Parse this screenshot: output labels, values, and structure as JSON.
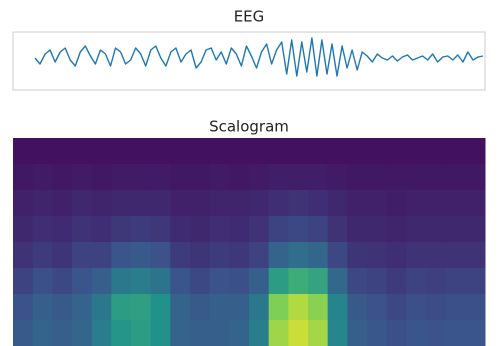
{
  "chart_data": [
    {
      "type": "line",
      "title": "EEG",
      "color": "#1f77b4",
      "ylim": [
        -1.2,
        1.2
      ],
      "values": [
        0.0,
        -0.3,
        0.2,
        0.4,
        -0.2,
        0.3,
        0.5,
        -0.1,
        -0.4,
        0.3,
        0.6,
        0.1,
        -0.3,
        0.4,
        0.2,
        -0.4,
        0.5,
        0.3,
        -0.3,
        -0.1,
        0.5,
        0.2,
        -0.4,
        0.4,
        0.6,
        0.0,
        -0.4,
        0.3,
        0.5,
        -0.2,
        0.2,
        0.4,
        -0.5,
        -0.2,
        0.4,
        0.5,
        -0.1,
        0.3,
        -0.3,
        0.5,
        0.2,
        -0.4,
        0.6,
        0.1,
        -0.5,
        0.3,
        0.7,
        -0.3,
        0.4,
        0.8,
        -0.8,
        0.9,
        -0.9,
        0.8,
        -0.7,
        1.0,
        -0.9,
        0.9,
        -0.8,
        0.7,
        -0.9,
        0.6,
        -0.5,
        0.4,
        -0.6,
        0.3,
        0.1,
        -0.2,
        0.2,
        0.0,
        -0.1,
        0.1,
        -0.15,
        0.05,
        0.15,
        -0.1,
        0.0,
        0.1,
        -0.1,
        0.2,
        -0.2,
        0.05,
        0.1,
        -0.1,
        0.15,
        -0.2,
        0.3,
        -0.1,
        0.05,
        0.1
      ]
    },
    {
      "type": "heatmap",
      "title": "Scalogram",
      "colormap": "viridis",
      "zlim": [
        0,
        1
      ],
      "values": [
        [
          0.05,
          0.05,
          0.05,
          0.05,
          0.05,
          0.05,
          0.05,
          0.05,
          0.05,
          0.05,
          0.05,
          0.05,
          0.05,
          0.05,
          0.05,
          0.05,
          0.05,
          0.05,
          0.05,
          0.05,
          0.05,
          0.05,
          0.05,
          0.05
        ],
        [
          0.07,
          0.08,
          0.07,
          0.08,
          0.07,
          0.08,
          0.08,
          0.08,
          0.07,
          0.07,
          0.08,
          0.07,
          0.08,
          0.09,
          0.09,
          0.09,
          0.08,
          0.07,
          0.07,
          0.07,
          0.07,
          0.07,
          0.07,
          0.07
        ],
        [
          0.1,
          0.11,
          0.1,
          0.12,
          0.11,
          0.12,
          0.12,
          0.12,
          0.1,
          0.1,
          0.11,
          0.11,
          0.12,
          0.14,
          0.15,
          0.14,
          0.12,
          0.1,
          0.1,
          0.09,
          0.1,
          0.1,
          0.1,
          0.1
        ],
        [
          0.12,
          0.14,
          0.13,
          0.15,
          0.14,
          0.17,
          0.18,
          0.17,
          0.13,
          0.12,
          0.14,
          0.13,
          0.15,
          0.2,
          0.22,
          0.2,
          0.15,
          0.12,
          0.12,
          0.11,
          0.12,
          0.12,
          0.12,
          0.12
        ],
        [
          0.15,
          0.18,
          0.16,
          0.2,
          0.2,
          0.26,
          0.28,
          0.25,
          0.18,
          0.16,
          0.18,
          0.17,
          0.2,
          0.32,
          0.36,
          0.33,
          0.22,
          0.16,
          0.15,
          0.14,
          0.15,
          0.15,
          0.15,
          0.15
        ],
        [
          0.2,
          0.24,
          0.22,
          0.26,
          0.3,
          0.4,
          0.42,
          0.38,
          0.26,
          0.22,
          0.25,
          0.24,
          0.3,
          0.55,
          0.62,
          0.58,
          0.34,
          0.22,
          0.2,
          0.18,
          0.2,
          0.19,
          0.2,
          0.2
        ],
        [
          0.25,
          0.3,
          0.28,
          0.32,
          0.4,
          0.55,
          0.56,
          0.5,
          0.32,
          0.28,
          0.3,
          0.3,
          0.4,
          0.8,
          0.88,
          0.82,
          0.45,
          0.28,
          0.25,
          0.22,
          0.24,
          0.23,
          0.24,
          0.24
        ],
        [
          0.28,
          0.32,
          0.3,
          0.33,
          0.42,
          0.52,
          0.55,
          0.5,
          0.32,
          0.3,
          0.3,
          0.32,
          0.42,
          0.85,
          0.92,
          0.86,
          0.46,
          0.3,
          0.27,
          0.24,
          0.26,
          0.25,
          0.26,
          0.26
        ]
      ]
    }
  ]
}
